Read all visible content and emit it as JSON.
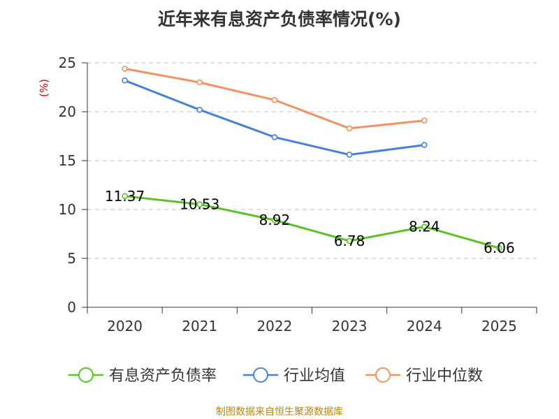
{
  "chart_data": {
    "type": "line",
    "title": "近年来有息资产负债率情况(%)",
    "ylabel": "(%)",
    "xlabel": "",
    "categories": [
      "2020",
      "2021",
      "2022",
      "2023",
      "2024",
      "2025"
    ],
    "ylim": [
      0,
      25
    ],
    "yticks": [
      0,
      5,
      10,
      15,
      20,
      25
    ],
    "grid": true,
    "legend_position": "bottom",
    "series": [
      {
        "name": "有息资产负债率",
        "color": "#5ac224",
        "values": [
          11.37,
          10.53,
          8.92,
          6.78,
          8.24,
          6.06
        ],
        "show_labels": true
      },
      {
        "name": "行业均值",
        "color": "#4a7fdc",
        "values": [
          23.2,
          20.2,
          17.4,
          15.6,
          16.6,
          null
        ],
        "show_labels": false
      },
      {
        "name": "行业中位数",
        "color": "#f39160",
        "values": [
          24.4,
          23.0,
          21.2,
          18.3,
          19.1,
          null
        ],
        "show_labels": false
      }
    ]
  },
  "colors": {
    "axis": "#333333",
    "grid": "#cccccc",
    "unit_label": "#cc0000",
    "source": "#b8860b"
  },
  "source": "制图数据来自恒生聚源数据库"
}
